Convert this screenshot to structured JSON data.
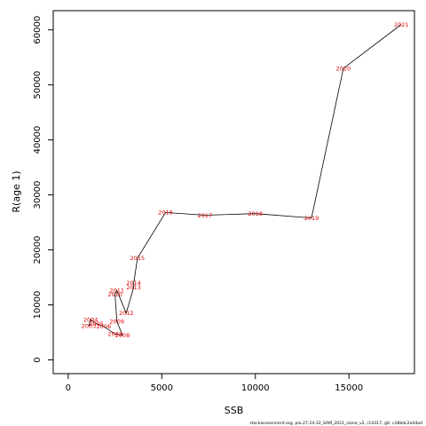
{
  "chart_data": {
    "type": "line",
    "title": "",
    "xlabel": "SSB",
    "ylabel": "R(age 1)",
    "xlim": [
      -800,
      18500
    ],
    "ylim": [
      -2500,
      63500
    ],
    "x_ticks": [
      0,
      5000,
      10000,
      15000
    ],
    "y_ticks": [
      0,
      10000,
      20000,
      30000,
      40000,
      50000,
      60000
    ],
    "grid": false,
    "legend": "none",
    "line_color": "#000000",
    "label_color": "#e00000",
    "points": [
      {
        "label": "2003",
        "x": 1100,
        "y": 6200
      },
      {
        "label": "2004",
        "x": 1200,
        "y": 7300
      },
      {
        "label": "2005",
        "x": 1500,
        "y": 6600
      },
      {
        "label": "2006",
        "x": 1900,
        "y": 6100
      },
      {
        "label": "2007",
        "x": 2500,
        "y": 4700
      },
      {
        "label": "2008",
        "x": 2900,
        "y": 4500
      },
      {
        "label": "2009",
        "x": 2600,
        "y": 7000
      },
      {
        "label": "2010",
        "x": 2500,
        "y": 11900
      },
      {
        "label": "2011",
        "x": 2600,
        "y": 12600
      },
      {
        "label": "2012",
        "x": 3100,
        "y": 8500
      },
      {
        "label": "2013",
        "x": 3500,
        "y": 13200
      },
      {
        "label": "2014",
        "x": 3500,
        "y": 14000
      },
      {
        "label": "2015",
        "x": 3700,
        "y": 18500
      },
      {
        "label": "2016",
        "x": 5200,
        "y": 26800
      },
      {
        "label": "2017",
        "x": 7300,
        "y": 26300
      },
      {
        "label": "2018",
        "x": 10000,
        "y": 26600
      },
      {
        "label": "2019",
        "x": 13000,
        "y": 25800
      },
      {
        "label": "2020",
        "x": 14700,
        "y": 53000
      },
      {
        "label": "2021",
        "x": 17800,
        "y": 61000
      }
    ]
  },
  "caption": "stockassessment.org, pla.27.24-32_SAM_2021_clone_v2, r14317, git: c28bdc2a44ad"
}
